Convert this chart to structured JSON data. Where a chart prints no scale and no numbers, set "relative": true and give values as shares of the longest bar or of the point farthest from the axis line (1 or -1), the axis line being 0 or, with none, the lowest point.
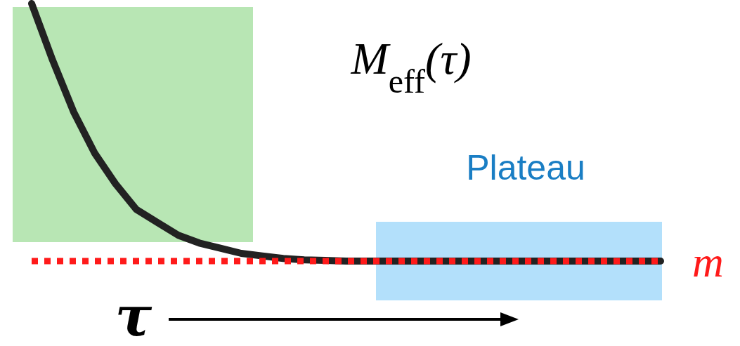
{
  "chart_data": {
    "type": "line",
    "title": "M$_{eff}$(τ)",
    "xlabel": "τ",
    "relative": true,
    "marker": "none",
    "line_style": "solid",
    "annotations": [
      "Plateau"
    ],
    "categories": [
      null,
      null,
      null,
      null,
      null,
      null,
      null,
      null,
      null,
      null,
      null,
      null,
      null,
      null,
      null,
      null,
      null,
      null,
      null,
      null,
      null,
      null,
      null,
      null,
      null,
      null,
      null,
      null,
      null,
      null,
      null
    ],
    "series": [
      {
        "color": "#222222",
        "values": [
          1,
          0.78,
          0.58,
          0.42,
          0.3,
          0.2,
          0.15,
          0.1,
          0.07,
          0.05,
          0.03,
          0.02,
          0.01,
          0.005,
          0.003,
          0,
          0,
          0,
          0,
          0,
          0,
          0,
          0,
          0,
          0,
          0,
          0,
          0,
          0,
          0,
          0
        ]
      },
      {
        "name": "m",
        "color": "#ff1a1a",
        "line_style": "dotted",
        "values": [
          0,
          0,
          0,
          0,
          0,
          0,
          0,
          0,
          0,
          0,
          0,
          0,
          0,
          0,
          0,
          0,
          0,
          0,
          0,
          0,
          0,
          0,
          0,
          0,
          0,
          0,
          0,
          0,
          0,
          0,
          0
        ]
      }
    ]
  }
}
